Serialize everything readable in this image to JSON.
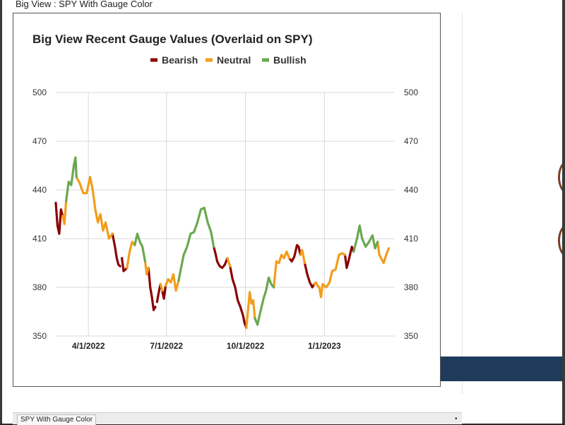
{
  "window": {
    "title": "Big View : SPY With Gauge Color",
    "bottom_tab": "SPY With Gauge Color",
    "bottom_dot": "•"
  },
  "chart_data": {
    "type": "line",
    "title": "Big View Recent Gauge Values (Overlaid on SPY)",
    "xlabel": "",
    "ylabel": "",
    "ylim": [
      350,
      500
    ],
    "yticks": [
      "350",
      "380",
      "410",
      "440",
      "470",
      "500"
    ],
    "xticks": [
      {
        "label": "4/1/2022",
        "date": "2022-04-01"
      },
      {
        "label": "7/1/2022",
        "date": "2022-07-01"
      },
      {
        "label": "10/1/2022",
        "date": "2022-10-01"
      },
      {
        "label": "1/1/2023",
        "date": "2023-01-01"
      }
    ],
    "xlim": [
      "2022-02-22",
      "2023-03-24"
    ],
    "grid": true,
    "legend_placement": "top-center",
    "colors": {
      "Bearish": "#8b0000",
      "Neutral": "#f29d1b",
      "Bullish": "#6aa84f"
    },
    "legend": [
      "Bearish",
      "Neutral",
      "Bullish"
    ],
    "series": [
      {
        "name": "Bearish",
        "segments": [
          [
            [
              "2022-02-22",
              432
            ],
            [
              "2022-02-24",
              418
            ],
            [
              "2022-02-26",
              413
            ],
            [
              "2022-02-28",
              428
            ],
            [
              "2022-03-02",
              424
            ]
          ],
          [
            [
              "2022-04-29",
              413
            ],
            [
              "2022-05-02",
              405
            ],
            [
              "2022-05-04",
              398
            ],
            [
              "2022-05-06",
              394
            ],
            [
              "2022-05-08",
              393
            ]
          ],
          [
            [
              "2022-05-10",
              398
            ],
            [
              "2022-05-12",
              390
            ],
            [
              "2022-05-14",
              391
            ],
            [
              "2022-05-16",
              392
            ]
          ],
          [
            [
              "2022-06-10",
              392
            ],
            [
              "2022-06-12",
              380
            ],
            [
              "2022-06-14",
              374
            ],
            [
              "2022-06-16",
              366
            ],
            [
              "2022-06-18",
              368
            ]
          ],
          [
            [
              "2022-06-20",
              371
            ],
            [
              "2022-06-22",
              377
            ],
            [
              "2022-06-24",
              382
            ]
          ],
          [
            [
              "2022-06-26",
              378
            ],
            [
              "2022-06-28",
              373
            ],
            [
              "2022-06-30",
              381
            ]
          ],
          [
            [
              "2022-08-25",
              405
            ],
            [
              "2022-08-27",
              401
            ],
            [
              "2022-08-29",
              396
            ],
            [
              "2022-09-01",
              393
            ],
            [
              "2022-09-04",
              392
            ],
            [
              "2022-09-07",
              394
            ],
            [
              "2022-09-10",
              398
            ]
          ],
          [
            [
              "2022-09-13",
              393
            ],
            [
              "2022-09-16",
              385
            ],
            [
              "2022-09-19",
              380
            ],
            [
              "2022-09-22",
              372
            ],
            [
              "2022-09-25",
              368
            ],
            [
              "2022-09-28",
              363
            ],
            [
              "2022-09-30",
              358
            ],
            [
              "2022-10-02",
              355
            ]
          ],
          [
            [
              "2022-11-21",
              398
            ],
            [
              "2022-11-24",
              396
            ],
            [
              "2022-11-27",
              399
            ],
            [
              "2022-11-30",
              406
            ],
            [
              "2022-12-02",
              405
            ],
            [
              "2022-12-04",
              400
            ]
          ],
          [
            [
              "2022-12-09",
              395
            ],
            [
              "2022-12-12",
              388
            ],
            [
              "2022-12-15",
              383
            ],
            [
              "2022-12-18",
              380
            ],
            [
              "2022-12-20",
              382
            ]
          ],
          [
            [
              "2023-01-25",
              400
            ],
            [
              "2023-01-27",
              392
            ],
            [
              "2023-01-29",
              396
            ],
            [
              "2023-02-02",
              405
            ],
            [
              "2023-02-04",
              402
            ]
          ]
        ]
      },
      {
        "name": "Neutral",
        "segments": [
          [
            [
              "2022-03-02",
              424
            ],
            [
              "2022-03-04",
              419
            ],
            [
              "2022-03-06",
              433
            ]
          ],
          [
            [
              "2022-03-18",
              448
            ],
            [
              "2022-03-22",
              444
            ],
            [
              "2022-03-26",
              438
            ],
            [
              "2022-03-30",
              438
            ],
            [
              "2022-04-03",
              448
            ],
            [
              "2022-04-06",
              440
            ],
            [
              "2022-04-09",
              428
            ],
            [
              "2022-04-12",
              420
            ],
            [
              "2022-04-15",
              425
            ],
            [
              "2022-04-18",
              415
            ],
            [
              "2022-04-21",
              420
            ],
            [
              "2022-04-25",
              410
            ],
            [
              "2022-04-29",
              413
            ]
          ],
          [
            [
              "2022-05-16",
              392
            ],
            [
              "2022-05-19",
              402
            ],
            [
              "2022-05-22",
              408
            ],
            [
              "2022-05-25",
              406
            ]
          ],
          [
            [
              "2022-06-06",
              396
            ],
            [
              "2022-06-08",
              388
            ],
            [
              "2022-06-10",
              392
            ]
          ],
          [
            [
              "2022-06-24",
              382
            ],
            [
              "2022-06-26",
              378
            ]
          ],
          [
            [
              "2022-06-30",
              381
            ],
            [
              "2022-07-03",
              385
            ],
            [
              "2022-07-06",
              383
            ],
            [
              "2022-07-09",
              388
            ],
            [
              "2022-07-12",
              378
            ],
            [
              "2022-07-15",
              384
            ]
          ],
          [
            [
              "2022-09-10",
              398
            ],
            [
              "2022-09-13",
              393
            ]
          ],
          [
            [
              "2022-10-02",
              355
            ],
            [
              "2022-10-04",
              366
            ],
            [
              "2022-10-06",
              377
            ],
            [
              "2022-10-08",
              370
            ],
            [
              "2022-10-10",
              372
            ],
            [
              "2022-10-12",
              361
            ]
          ],
          [
            [
              "2022-11-03",
              380
            ],
            [
              "2022-11-06",
              396
            ],
            [
              "2022-11-09",
              395
            ],
            [
              "2022-11-12",
              400
            ],
            [
              "2022-11-15",
              398
            ],
            [
              "2022-11-18",
              402
            ],
            [
              "2022-11-21",
              398
            ]
          ],
          [
            [
              "2022-12-04",
              400
            ],
            [
              "2022-12-06",
              403
            ],
            [
              "2022-12-09",
              395
            ]
          ],
          [
            [
              "2022-12-20",
              382
            ],
            [
              "2022-12-22",
              383
            ],
            [
              "2022-12-24",
              381
            ],
            [
              "2022-12-26",
              380
            ],
            [
              "2022-12-28",
              374
            ],
            [
              "2022-12-30",
              382
            ],
            [
              "2023-01-03",
              380
            ],
            [
              "2023-01-07",
              383
            ],
            [
              "2023-01-10",
              390
            ],
            [
              "2023-01-14",
              391
            ],
            [
              "2023-01-18",
              400
            ],
            [
              "2023-01-22",
              401
            ],
            [
              "2023-01-25",
              400
            ]
          ],
          [
            [
              "2023-03-04",
              408
            ],
            [
              "2023-03-06",
              400
            ],
            [
              "2023-03-08",
              398
            ],
            [
              "2023-03-11",
              395
            ],
            [
              "2023-03-14",
              400
            ],
            [
              "2023-03-17",
              404
            ]
          ]
        ]
      },
      {
        "name": "Bullish",
        "segments": [
          [
            [
              "2022-03-06",
              433
            ],
            [
              "2022-03-09",
              445
            ],
            [
              "2022-03-12",
              443
            ],
            [
              "2022-03-15",
              455
            ],
            [
              "2022-03-17",
              460
            ],
            [
              "2022-03-18",
              448
            ]
          ],
          [
            [
              "2022-05-25",
              406
            ],
            [
              "2022-05-28",
              413
            ],
            [
              "2022-05-31",
              408
            ],
            [
              "2022-06-03",
              405
            ],
            [
              "2022-06-06",
              396
            ]
          ],
          [
            [
              "2022-07-15",
              384
            ],
            [
              "2022-07-18",
              392
            ],
            [
              "2022-07-21",
              400
            ],
            [
              "2022-07-25",
              405
            ],
            [
              "2022-07-29",
              413
            ],
            [
              "2022-08-02",
              414
            ],
            [
              "2022-08-06",
              420
            ],
            [
              "2022-08-10",
              428
            ],
            [
              "2022-08-14",
              429
            ],
            [
              "2022-08-18",
              420
            ],
            [
              "2022-08-22",
              414
            ],
            [
              "2022-08-25",
              405
            ]
          ],
          [
            [
              "2022-10-12",
              361
            ],
            [
              "2022-10-15",
              357
            ],
            [
              "2022-10-18",
              364
            ],
            [
              "2022-10-22",
              373
            ],
            [
              "2022-10-25",
              378
            ],
            [
              "2022-10-28",
              386
            ],
            [
              "2022-10-31",
              382
            ],
            [
              "2022-11-03",
              380
            ]
          ],
          [
            [
              "2023-02-04",
              402
            ],
            [
              "2023-02-08",
              410
            ],
            [
              "2023-02-11",
              418
            ],
            [
              "2023-02-14",
              410
            ],
            [
              "2023-02-18",
              405
            ],
            [
              "2023-02-22",
              408
            ],
            [
              "2023-02-26",
              412
            ],
            [
              "2023-03-01",
              404
            ],
            [
              "2023-03-04",
              408
            ]
          ]
        ]
      }
    ]
  }
}
